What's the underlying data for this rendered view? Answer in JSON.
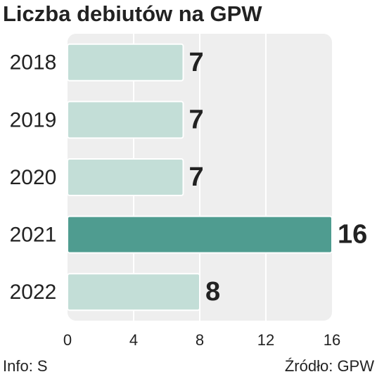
{
  "chart_data": {
    "type": "bar",
    "orientation": "horizontal",
    "title": "Liczba debiutów na  GPW",
    "categories": [
      "2018",
      "2019",
      "2020",
      "2021",
      "2022"
    ],
    "values": [
      7,
      7,
      7,
      16,
      8
    ],
    "colors": [
      "#c3ded7",
      "#c3ded7",
      "#c3ded7",
      "#4f9c90",
      "#c3ded7"
    ],
    "xlim": [
      0,
      16
    ],
    "xticks": [
      0,
      4,
      8,
      12,
      16
    ],
    "grid": true,
    "info": "Info: S",
    "source": "Źródło: GPW"
  }
}
